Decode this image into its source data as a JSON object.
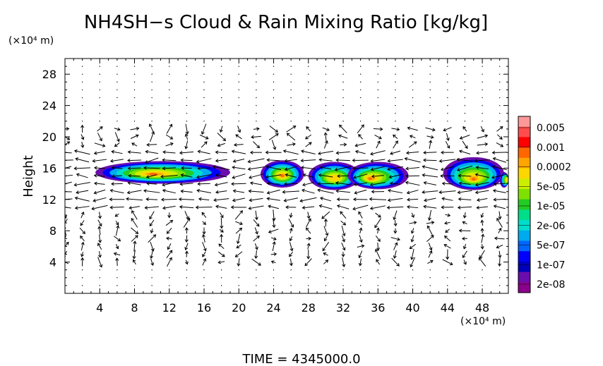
{
  "chart_data": {
    "type": "heatmap",
    "title": "NH4SH−s Cloud & Rain Mixing Ratio [kg/kg]",
    "ylabel": "Height",
    "y_unit": "(×10⁴ m)",
    "x_unit": "(×10⁴ m)",
    "xlim": [
      0,
      51
    ],
    "ylim": [
      0,
      30
    ],
    "x_ticks": [
      4,
      8,
      12,
      16,
      20,
      24,
      28,
      32,
      36,
      40,
      44,
      48
    ],
    "y_ticks": [
      4,
      8,
      12,
      16,
      20,
      24,
      28
    ],
    "grid": false,
    "legend": "right colorbar",
    "colorbar": {
      "labels": [
        "0.005",
        "0.001",
        "0.0002",
        "5e-05",
        "1e-05",
        "2e-06",
        "5e-07",
        "1e-07",
        "2e-08"
      ],
      "colors": [
        "#ff9999",
        "#ff4d4d",
        "#ff0000",
        "#ff6600",
        "#ffa500",
        "#ffd700",
        "#ccee00",
        "#80e000",
        "#22cc22",
        "#00dd88",
        "#00ddcc",
        "#00aaee",
        "#0066ff",
        "#0000ff",
        "#0000bb",
        "#6a0dad",
        "#8b008b"
      ]
    },
    "cloud_blobs": [
      {
        "x": [
          3.5,
          19
        ],
        "y": [
          14.0,
          16.9
        ],
        "peak_x": 10,
        "peak_y": 15.2,
        "level": 0.0002
      },
      {
        "x": [
          22.5,
          27.5
        ],
        "y": [
          13.5,
          17.0
        ],
        "peak_x": 25,
        "peak_y": 15.0,
        "level": 0.0002
      },
      {
        "x": [
          28,
          34
        ],
        "y": [
          13.2,
          16.8
        ],
        "peak_x": 31,
        "peak_y": 14.6,
        "level": 5e-05
      },
      {
        "x": [
          32.5,
          39.5
        ],
        "y": [
          13.3,
          16.8
        ],
        "peak_x": 35,
        "peak_y": 14.6,
        "level": 0.0002
      },
      {
        "x": [
          43.5,
          50.5
        ],
        "y": [
          13.2,
          17.4
        ],
        "peak_x": 47,
        "peak_y": 14.5,
        "level": 0.0002
      },
      {
        "x": [
          50,
          51
        ],
        "y": [
          13.5,
          15.5
        ],
        "peak_x": 51,
        "peak_y": 14.5,
        "level": 5e-05
      }
    ],
    "time_label": "TIME  =  4345000.0"
  }
}
